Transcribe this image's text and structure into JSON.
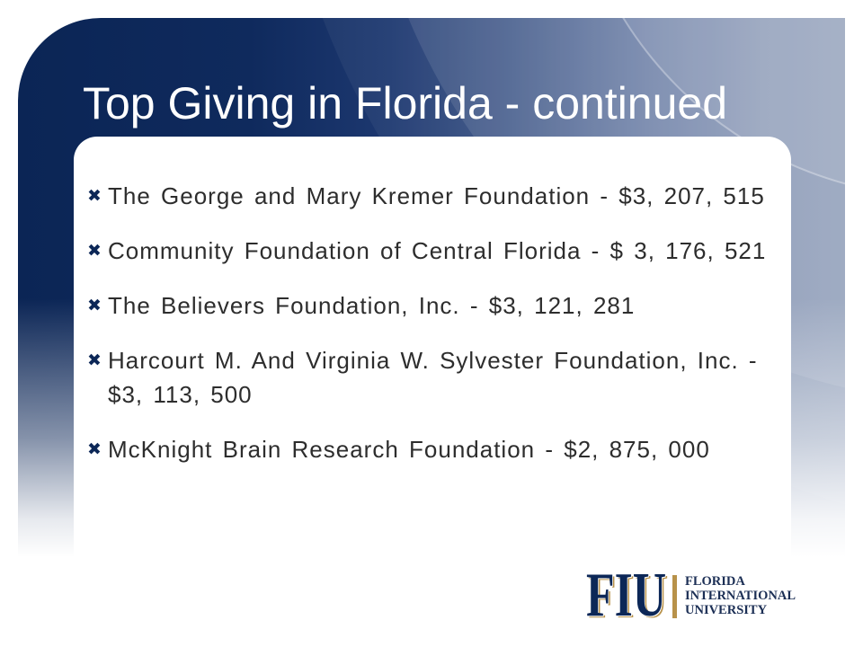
{
  "slide": {
    "title": "Top Giving in Florida - continued",
    "bullet_icon": "heavy-x-icon",
    "items": [
      "The George and Mary Kremer Foundation - $3, 207, 515",
      "Community Foundation of Central Florida - $ 3, 176, 521",
      "The Believers Foundation, Inc. - $3, 121, 281",
      "Harcourt M. And Virginia W. Sylvester Foundation, Inc. - $3, 113, 500",
      "McKnight Brain Research Foundation - $2, 875, 000"
    ]
  },
  "logo": {
    "mark": "FIU",
    "lines": [
      "FLORIDA",
      "INTERNATIONAL",
      "UNIVERSITY"
    ]
  },
  "colors": {
    "navy": "#0c2757",
    "gold": "#b8924a",
    "body_text": "#2d2d2d",
    "title_text": "#ffffff",
    "logo_text": "#1c2f55"
  }
}
